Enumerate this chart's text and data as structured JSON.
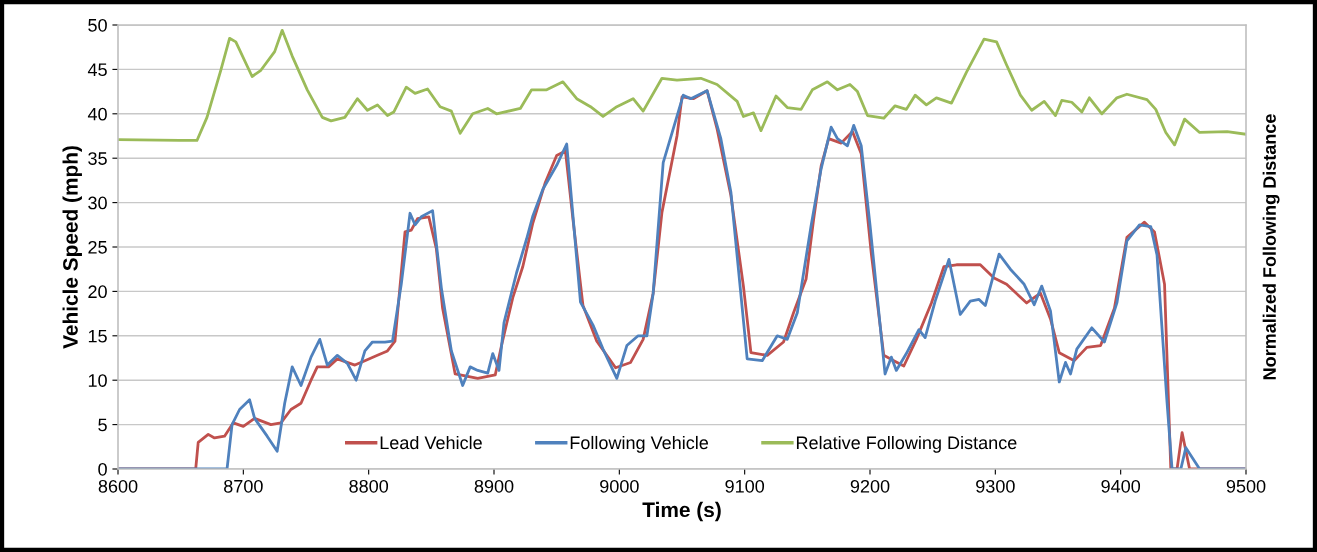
{
  "chart_data": {
    "type": "line",
    "xlabel": "Time (s)",
    "ylabel": "Vehicle Speed (mph)",
    "y2label": "Normalized Following Distance",
    "xlim": [
      8600,
      9500
    ],
    "xticks": [
      8600,
      8700,
      8800,
      8900,
      9000,
      9100,
      9200,
      9300,
      9400,
      9500
    ],
    "ylim": [
      0,
      50
    ],
    "yticks": [
      0,
      5,
      10,
      15,
      20,
      25,
      30,
      35,
      40,
      45,
      50
    ],
    "grid": "y",
    "legend": "bottom",
    "marker": "none",
    "line_style": "solid",
    "series": [
      {
        "name": "Lead Vehicle",
        "color": "#c0504d",
        "x": [
          8600,
          8662,
          8664,
          8672,
          8677,
          8685,
          8692,
          8700,
          8709,
          8722,
          8730,
          8738,
          8746,
          8754,
          8759,
          8768,
          8775,
          8789,
          8797,
          8807,
          8815,
          8821,
          8829,
          8834,
          8839,
          8848,
          8854,
          8859,
          8869,
          8887,
          8901,
          8906,
          8915,
          8923,
          8931,
          8941,
          8950,
          8957,
          8963,
          8971,
          8982,
          8997,
          9009,
          9019,
          9027,
          9034,
          9046,
          9050,
          9059,
          9070,
          9078,
          9089,
          9099,
          9105,
          9118,
          9131,
          9139,
          9149,
          9155,
          9161,
          9167,
          9177,
          9186,
          9193,
          9201,
          9211,
          9219,
          9227,
          9237,
          9249,
          9259,
          9269,
          9288,
          9299,
          9309,
          9325,
          9336,
          9344,
          9351,
          9363,
          9373,
          9384,
          9395,
          9405,
          9419,
          9427,
          9435,
          9440,
          9445,
          9449,
          9455,
          9500
        ],
        "values": [
          0,
          0,
          3.0,
          3.9,
          3.5,
          3.7,
          5.2,
          4.8,
          5.7,
          5.0,
          5.2,
          6.7,
          7.4,
          10.0,
          11.5,
          11.5,
          12.4,
          11.7,
          12.2,
          12.8,
          13.3,
          14.4,
          26.7,
          26.9,
          28.2,
          28.4,
          24.8,
          18.1,
          10.7,
          10.2,
          10.6,
          13.9,
          19.3,
          22.8,
          27.7,
          32.3,
          35.3,
          35.8,
          28.1,
          18.4,
          14.4,
          11.4,
          12.0,
          14.6,
          19.8,
          28.9,
          37.5,
          41.9,
          41.7,
          42.6,
          38.3,
          30.8,
          20.6,
          13.1,
          12.8,
          14.3,
          17.6,
          21.4,
          28.1,
          34.1,
          37.2,
          36.7,
          38.0,
          35.5,
          24.3,
          12.8,
          12.2,
          11.6,
          14.6,
          18.7,
          22.8,
          23.0,
          23.0,
          21.5,
          20.8,
          18.7,
          19.8,
          16.9,
          13.1,
          12.2,
          13.7,
          13.9,
          18.1,
          26.1,
          27.8,
          26.7,
          20.8,
          0,
          0,
          4.1,
          0,
          0
        ]
      },
      {
        "name": "Following Vehicle",
        "color": "#4f81bd",
        "x": [
          8600,
          8687,
          8691,
          8697,
          8705,
          8709,
          8719,
          8727,
          8733,
          8739,
          8746,
          8754,
          8761,
          8767,
          8775,
          8783,
          8790,
          8797,
          8803,
          8813,
          8819,
          8826,
          8833,
          8837,
          8842,
          8851,
          8858,
          8866,
          8875,
          8881,
          8887,
          8895,
          8899,
          8904,
          8908,
          8918,
          8926,
          8931,
          8939,
          8950,
          8958,
          8969,
          8979,
          8987,
          8998,
          9006,
          9015,
          9022,
          9027,
          9035,
          9043,
          9051,
          9057,
          9070,
          9081,
          9089,
          9102,
          9114,
          9126,
          9134,
          9142,
          9153,
          9161,
          9169,
          9174,
          9182,
          9187,
          9193,
          9200,
          9212,
          9217,
          9221,
          9229,
          9239,
          9244,
          9252,
          9263,
          9272,
          9280,
          9287,
          9292,
          9303,
          9312,
          9323,
          9331,
          9337,
          9344,
          9351,
          9356,
          9360,
          9365,
          9377,
          9387,
          9397,
          9405,
          9415,
          9424,
          9429,
          9437,
          9441,
          9448,
          9452,
          9463,
          9500
        ],
        "values": [
          0,
          0,
          5.0,
          6.7,
          7.8,
          5.7,
          3.7,
          2.0,
          7.4,
          11.5,
          9.4,
          12.6,
          14.6,
          11.7,
          12.8,
          11.9,
          10.0,
          13.3,
          14.3,
          14.3,
          14.4,
          20.8,
          28.8,
          27.5,
          28.4,
          29.1,
          20.4,
          13.3,
          9.4,
          11.5,
          11.1,
          10.8,
          13.0,
          11.1,
          16.5,
          22.1,
          25.9,
          28.5,
          31.5,
          34.2,
          36.6,
          18.8,
          16.2,
          13.5,
          10.2,
          13.9,
          15.0,
          15.0,
          19.8,
          34.5,
          38.3,
          42.1,
          41.7,
          42.6,
          37.2,
          31.2,
          12.4,
          12.2,
          15.0,
          14.6,
          17.6,
          27.4,
          33.8,
          38.5,
          37.2,
          36.4,
          38.7,
          36.4,
          27.5,
          10.7,
          12.6,
          11.1,
          13.0,
          15.7,
          14.8,
          18.9,
          23.6,
          17.4,
          18.9,
          19.1,
          18.4,
          24.2,
          22.5,
          20.8,
          18.5,
          20.6,
          17.8,
          9.8,
          12.0,
          10.7,
          13.5,
          15.9,
          14.3,
          18.7,
          25.7,
          27.5,
          27.3,
          24.1,
          7.5,
          0,
          0,
          2.4,
          0,
          0
        ]
      },
      {
        "name": "Relative Following Distance",
        "color": "#9bbb59",
        "x": [
          8600,
          8649,
          8663,
          8671,
          8682,
          8689,
          8694,
          8707,
          8714,
          8725,
          8731,
          8739,
          8751,
          8763,
          8770,
          8781,
          8791,
          8799,
          8807,
          8815,
          8820,
          8830,
          8837,
          8847,
          8857,
          8866,
          8873,
          8883,
          8895,
          8902,
          8921,
          8930,
          8942,
          8955,
          8966,
          8977,
          8987,
          8998,
          9011,
          9019,
          9034,
          9046,
          9065,
          9078,
          9094,
          9099,
          9107,
          9113,
          9125,
          9134,
          9145,
          9154,
          9166,
          9174,
          9184,
          9190,
          9198,
          9211,
          9220,
          9229,
          9236,
          9245,
          9253,
          9265,
          9277,
          9291,
          9301,
          9309,
          9320,
          9329,
          9339,
          9348,
          9353,
          9361,
          9369,
          9375,
          9385,
          9397,
          9405,
          9421,
          9428,
          9436,
          9443,
          9451,
          9463,
          9485,
          9500
        ],
        "values": [
          37.1,
          37.0,
          37.0,
          39.6,
          44.9,
          48.5,
          48.1,
          44.2,
          44.9,
          47.0,
          49.4,
          46.5,
          42.7,
          39.6,
          39.2,
          39.6,
          41.7,
          40.4,
          41.0,
          39.8,
          40.2,
          43.0,
          42.3,
          42.8,
          40.8,
          40.3,
          37.8,
          40.0,
          40.6,
          40.0,
          40.6,
          42.7,
          42.7,
          43.6,
          41.7,
          40.8,
          39.7,
          40.8,
          41.7,
          40.3,
          44.0,
          43.8,
          44.0,
          43.3,
          41.4,
          39.7,
          40.1,
          38.1,
          42.0,
          40.7,
          40.5,
          42.7,
          43.6,
          42.7,
          43.3,
          42.5,
          39.8,
          39.5,
          40.9,
          40.5,
          42.1,
          41.0,
          41.8,
          41.2,
          44.7,
          48.4,
          48.1,
          45.5,
          42.1,
          40.4,
          41.4,
          39.8,
          41.5,
          41.3,
          40.2,
          41.8,
          40.0,
          41.8,
          42.2,
          41.6,
          40.5,
          37.9,
          36.5,
          39.4,
          37.9,
          38.0,
          37.7
        ]
      }
    ]
  }
}
